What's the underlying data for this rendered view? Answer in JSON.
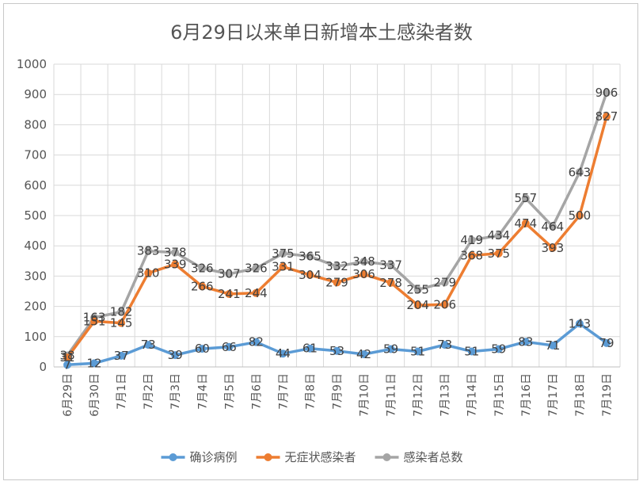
{
  "chart_data": {
    "type": "line",
    "title": "6月29日以来单日新增本土感染者数",
    "xlabel": "",
    "ylabel": "",
    "ylim": [
      0,
      1000
    ],
    "yticks": [
      "0",
      "100",
      "200",
      "300",
      "400",
      "500",
      "600",
      "700",
      "800",
      "900",
      "1000"
    ],
    "grid": true,
    "legend_position": "bottom",
    "categories": [
      "6月29日",
      "6月30日",
      "7月1日",
      "7月2日",
      "7月3日",
      "7月4日",
      "7月5日",
      "7月6日",
      "7月7日",
      "7月8日",
      "7月9日",
      "7月10日",
      "7月11日",
      "7月12日",
      "7月13日",
      "7月14日",
      "7月15日",
      "7月16日",
      "7月17日",
      "7月18日",
      "7月19日"
    ],
    "series": [
      {
        "name": "确诊病例",
        "color": "#5b9bd5",
        "values": [
          7,
          12,
          37,
          73,
          39,
          60,
          66,
          82,
          44,
          61,
          53,
          42,
          59,
          51,
          73,
          51,
          59,
          83,
          71,
          143,
          79
        ]
      },
      {
        "name": "无症状感染者",
        "color": "#ed7d31",
        "values": [
          31,
          151,
          145,
          310,
          339,
          266,
          241,
          244,
          331,
          304,
          279,
          306,
          278,
          204,
          206,
          368,
          375,
          474,
          393,
          500,
          827
        ]
      },
      {
        "name": "感染者总数",
        "color": "#a5a5a5",
        "values": [
          38,
          163,
          182,
          383,
          378,
          326,
          307,
          326,
          375,
          365,
          332,
          348,
          337,
          255,
          279,
          419,
          434,
          557,
          464,
          643,
          906
        ]
      }
    ]
  }
}
